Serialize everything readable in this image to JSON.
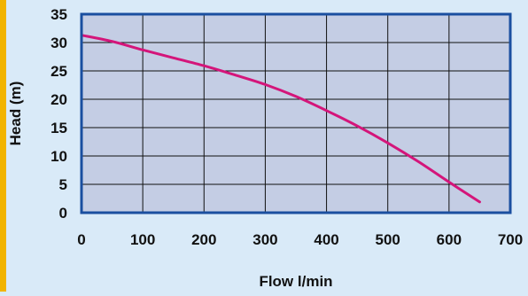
{
  "chart_data": {
    "type": "line",
    "title": "",
    "xlabel": "Flow l/min",
    "ylabel": "Head (m)",
    "xlim": [
      0,
      700
    ],
    "ylim": [
      0,
      35
    ],
    "x_ticks": [
      "0",
      "100",
      "200",
      "300",
      "400",
      "500",
      "600",
      "700"
    ],
    "y_ticks": [
      "0",
      "5",
      "10",
      "15",
      "20",
      "25",
      "30",
      "35"
    ],
    "grid": true,
    "colors": {
      "plot_background": "#c4cde4",
      "frame": "#1a4fa0",
      "line": "#d4157a",
      "gridline": "#111111"
    },
    "series": [
      {
        "x": [
          0,
          50,
          100,
          150,
          200,
          250,
          300,
          350,
          400,
          450,
          500,
          550,
          600,
          650
        ],
        "y": [
          31.3,
          30.2,
          28.7,
          27.3,
          25.9,
          24.3,
          22.6,
          20.5,
          18.0,
          15.3,
          12.3,
          9.0,
          5.4,
          1.9
        ]
      }
    ]
  }
}
